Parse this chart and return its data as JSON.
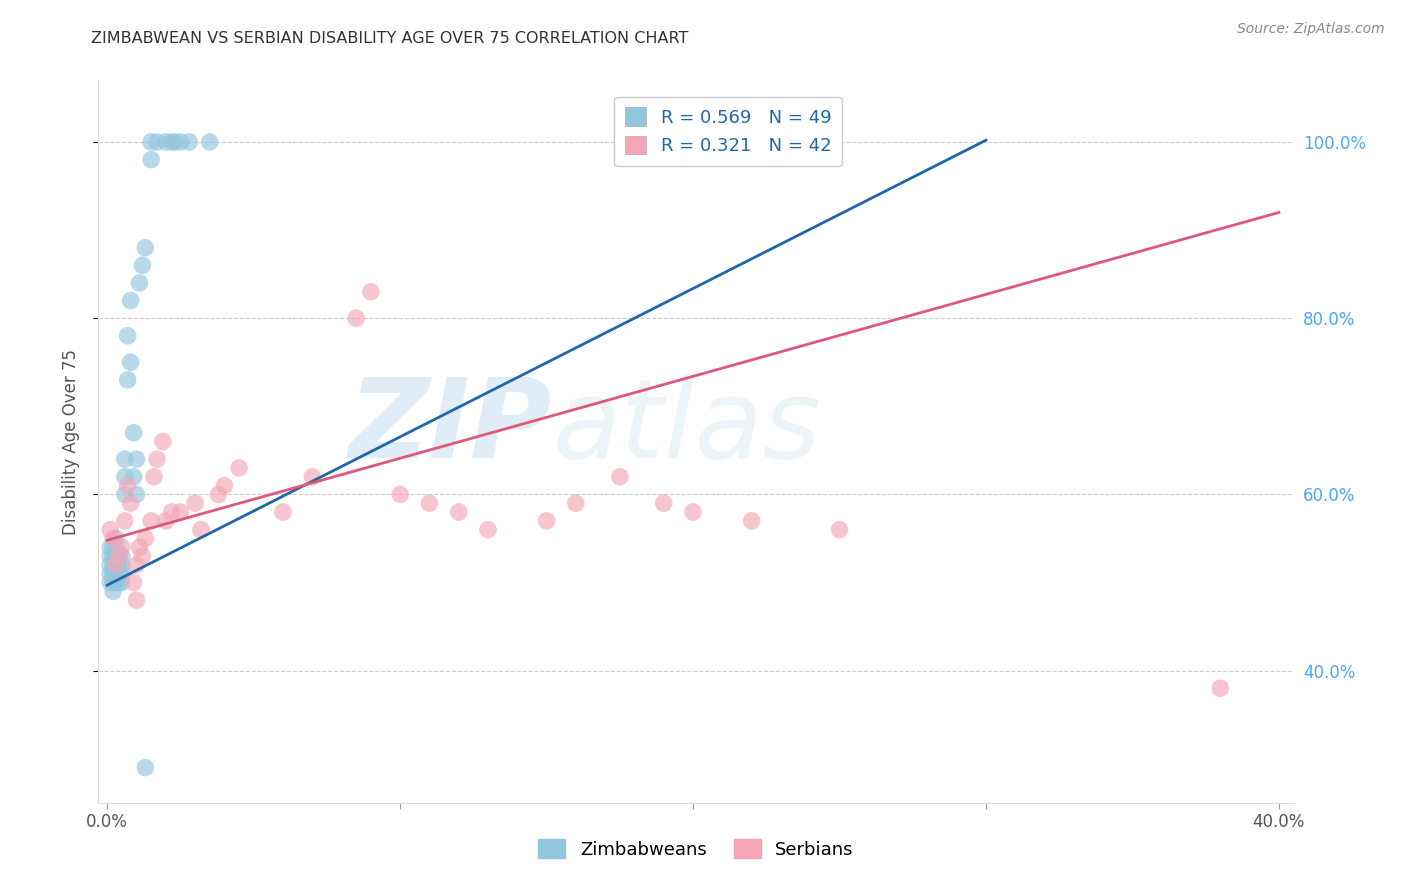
{
  "title": "ZIMBABWEAN VS SERBIAN DISABILITY AGE OVER 75 CORRELATION CHART",
  "source_text": "Source: ZipAtlas.com",
  "ylabel": "Disability Age Over 75",
  "watermark_zip": "ZIP",
  "watermark_atlas": "atlas",
  "blue_R": "0.569",
  "blue_N": "49",
  "pink_R": "0.321",
  "pink_N": "42",
  "blue_color": "#92c5de",
  "pink_color": "#f4a6b8",
  "blue_line_color": "#2166ac",
  "pink_line_color": "#e05878",
  "legend_label_color": "#2166ac",
  "ytick_color": "#4da6ff",
  "xtick_color": "#555555",
  "title_color": "#333333",
  "zim_x": [
    0.001,
    0.001,
    0.001,
    0.001,
    0.001,
    0.002,
    0.002,
    0.002,
    0.002,
    0.002,
    0.002,
    0.003,
    0.003,
    0.003,
    0.003,
    0.003,
    0.003,
    0.004,
    0.004,
    0.004,
    0.004,
    0.005,
    0.005,
    0.005,
    0.005,
    0.006,
    0.006,
    0.006,
    0.007,
    0.007,
    0.008,
    0.008,
    0.009,
    0.009,
    0.01,
    0.01,
    0.011,
    0.012,
    0.013,
    0.015,
    0.015,
    0.017,
    0.02,
    0.022,
    0.023,
    0.025,
    0.028,
    0.035,
    0.013
  ],
  "zim_y": [
    0.5,
    0.51,
    0.52,
    0.53,
    0.54,
    0.49,
    0.5,
    0.51,
    0.52,
    0.53,
    0.54,
    0.5,
    0.51,
    0.52,
    0.53,
    0.54,
    0.55,
    0.5,
    0.51,
    0.52,
    0.53,
    0.5,
    0.51,
    0.52,
    0.53,
    0.6,
    0.62,
    0.64,
    0.73,
    0.78,
    0.75,
    0.82,
    0.62,
    0.67,
    0.6,
    0.64,
    0.84,
    0.86,
    0.88,
    0.98,
    1.0,
    1.0,
    1.0,
    1.0,
    1.0,
    1.0,
    1.0,
    1.0,
    0.29
  ],
  "ser_x": [
    0.001,
    0.002,
    0.003,
    0.004,
    0.005,
    0.006,
    0.007,
    0.008,
    0.009,
    0.01,
    0.011,
    0.012,
    0.013,
    0.015,
    0.016,
    0.017,
    0.019,
    0.02,
    0.022,
    0.025,
    0.03,
    0.032,
    0.038,
    0.04,
    0.045,
    0.06,
    0.07,
    0.085,
    0.09,
    0.1,
    0.11,
    0.12,
    0.13,
    0.15,
    0.16,
    0.175,
    0.19,
    0.2,
    0.22,
    0.25,
    0.38,
    0.01
  ],
  "ser_y": [
    0.56,
    0.55,
    0.52,
    0.53,
    0.54,
    0.57,
    0.61,
    0.59,
    0.5,
    0.52,
    0.54,
    0.53,
    0.55,
    0.57,
    0.62,
    0.64,
    0.66,
    0.57,
    0.58,
    0.58,
    0.59,
    0.56,
    0.6,
    0.61,
    0.63,
    0.58,
    0.62,
    0.8,
    0.83,
    0.6,
    0.59,
    0.58,
    0.56,
    0.57,
    0.59,
    0.62,
    0.59,
    0.58,
    0.57,
    0.56,
    0.38,
    0.48
  ],
  "xlim": [
    -0.003,
    0.405
  ],
  "ylim": [
    0.25,
    1.07
  ],
  "xticks": [
    0.0,
    0.1,
    0.2,
    0.3,
    0.4
  ],
  "yticks": [
    0.4,
    0.6,
    0.8,
    1.0
  ],
  "blue_line_x": [
    0.0,
    0.3
  ],
  "blue_line_y": [
    0.497,
    1.002
  ],
  "pink_line_x": [
    0.0,
    0.4
  ],
  "pink_line_y": [
    0.548,
    0.92
  ]
}
